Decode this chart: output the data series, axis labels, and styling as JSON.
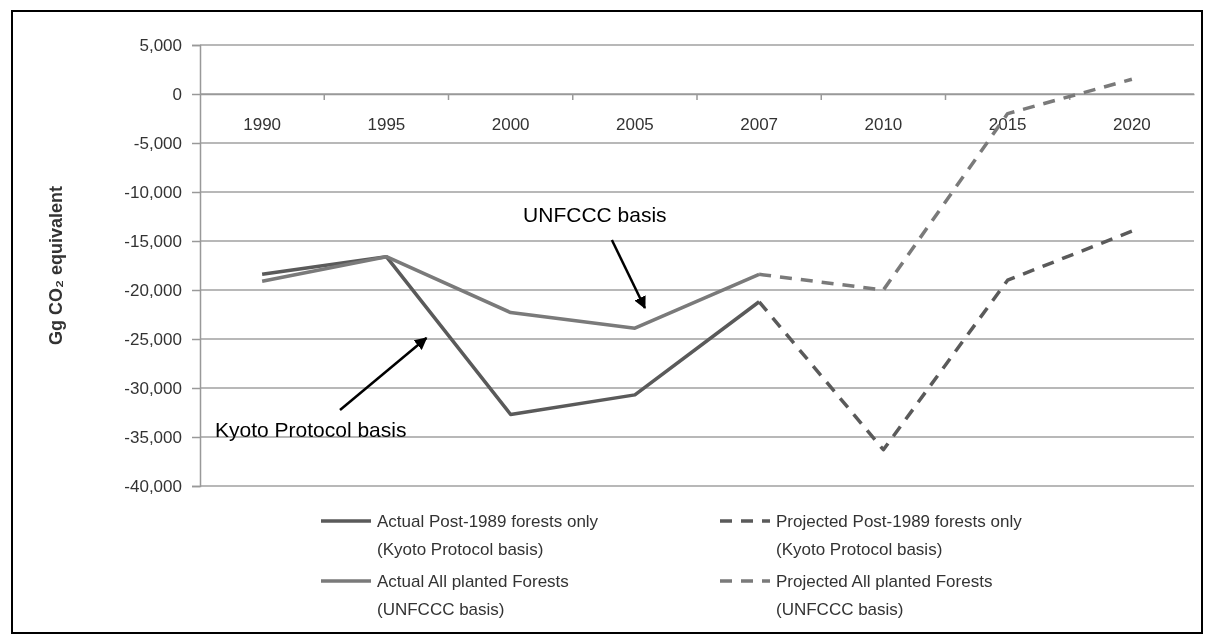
{
  "chart_data": {
    "type": "line",
    "ylabel": "Gg CO₂ equivalent",
    "categories": [
      "1990",
      "1995",
      "2000",
      "2005",
      "2007",
      "2010",
      "2015",
      "2020"
    ],
    "series": [
      {
        "name": "Actual Post-1989 forests only (Kyoto Protocol basis)",
        "color": "#5a5a5a",
        "line_style": "solid",
        "values": [
          -18400,
          -16600,
          -32700,
          -30700,
          -21200,
          null,
          null,
          null
        ]
      },
      {
        "name": "Projected Post-1989 forests only (Kyoto Protocol basis)",
        "color": "#5a5a5a",
        "line_style": "dashed",
        "values": [
          null,
          null,
          null,
          null,
          -21200,
          -36300,
          -19000,
          -14000
        ]
      },
      {
        "name": "Actual All planted Forests (UNFCCC basis)",
        "color": "#7a7a7a",
        "line_style": "solid",
        "values": [
          -19100,
          -16600,
          -22300,
          -23900,
          -18400,
          null,
          null,
          null
        ]
      },
      {
        "name": "Projected All planted Forests (UNFCCC basis)",
        "color": "#7a7a7a",
        "line_style": "dashed",
        "values": [
          null,
          null,
          null,
          null,
          -18400,
          -20000,
          -2000,
          1500
        ]
      }
    ],
    "ylim": [
      -40000,
      5000
    ],
    "yticks": [
      {
        "value": -40000,
        "label": "-40,000"
      },
      {
        "value": -35000,
        "label": "-35,000"
      },
      {
        "value": -30000,
        "label": "-30,000"
      },
      {
        "value": -25000,
        "label": "-25,000"
      },
      {
        "value": -20000,
        "label": "-20,000"
      },
      {
        "value": -15000,
        "label": "-15,000"
      },
      {
        "value": -10000,
        "label": "-10,000"
      },
      {
        "value": -5000,
        "label": "-5,000"
      },
      {
        "value": 0,
        "label": "0"
      },
      {
        "value": 5000,
        "label": "5,000"
      }
    ],
    "grid": "y",
    "legend": "bottom",
    "marker": "none",
    "annotations": [
      "UNFCCC basis",
      "Kyoto Protocol basis"
    ]
  }
}
